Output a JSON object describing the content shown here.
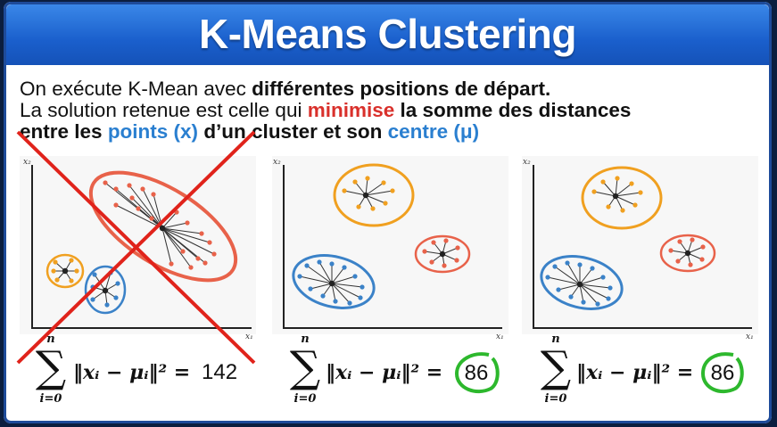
{
  "header": {
    "title": "K-Means Clustering"
  },
  "intro": {
    "line1_a": "On exécute K-Mean avec ",
    "line1_b": "différentes positions de départ.",
    "line2_a": "La solution retenue est celle qui ",
    "line2_b": "minimise",
    "line2_c": " la somme des distances",
    "line3_a": "entre les ",
    "line3_b": "points (x)",
    "line3_c": " d’un cluster et son ",
    "line3_d": "centre (μ)"
  },
  "axes": {
    "x": "x₁",
    "y": "x₂"
  },
  "formula": {
    "sum_top": "n",
    "sum_bottom": "i=0",
    "sigma": "∑",
    "expr": "‖xᵢ − μᵢ‖² ="
  },
  "panels": [
    {
      "result": "142",
      "rejected": true,
      "circled": false
    },
    {
      "result": "86",
      "rejected": false,
      "circled": true
    },
    {
      "result": "86",
      "rejected": false,
      "circled": true
    }
  ],
  "colors": {
    "title_bar": "#1a5fcc",
    "red_cluster": "#e8624a",
    "orange_cluster": "#f0a020",
    "blue_cluster": "#3b82c8",
    "cross": "#e0231b",
    "circle": "#2db82d"
  }
}
